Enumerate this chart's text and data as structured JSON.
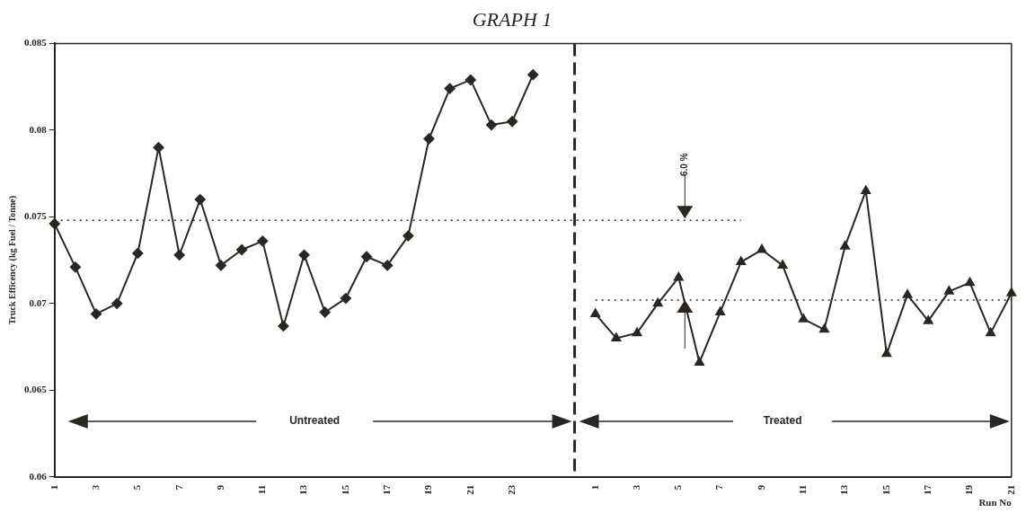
{
  "chart_data": {
    "type": "line",
    "title": "GRAPH 1",
    "xlabel": "Run No",
    "ylabel": "Truck Efficency (kg Fuel / Tonne)",
    "categories": [
      "1",
      null,
      "3",
      null,
      "5",
      null,
      "7",
      null,
      "9",
      null,
      "11",
      null,
      "13",
      null,
      "15",
      null,
      "17",
      null,
      "19",
      null,
      "21",
      null,
      "23",
      null,
      null,
      null,
      "1",
      null,
      "3",
      null,
      "5",
      null,
      "7",
      null,
      "9",
      null,
      "11",
      null,
      "13",
      null,
      "15",
      null,
      "17",
      null,
      "19",
      null,
      "21"
    ],
    "series": [
      {
        "color": "#2b2620",
        "marker": "diamond",
        "values": [
          0.0746,
          0.0721,
          0.0694,
          0.07,
          0.0729,
          0.079,
          0.0728,
          0.076,
          0.0722,
          0.0731,
          0.0736,
          0.0687,
          0.0728,
          0.0695,
          0.0703,
          0.0727,
          0.0722,
          0.0739,
          0.0795,
          0.0824,
          0.0829,
          0.0803,
          0.0805,
          0.0832,
          null,
          null,
          null,
          null,
          null,
          null,
          null,
          null,
          null,
          null,
          null,
          null,
          null,
          null,
          null,
          null,
          null,
          null,
          null,
          null,
          null,
          null,
          null
        ]
      },
      {
        "color": "#2b2620",
        "marker": "triangle",
        "values": [
          null,
          null,
          null,
          null,
          null,
          null,
          null,
          null,
          null,
          null,
          null,
          null,
          null,
          null,
          null,
          null,
          null,
          null,
          null,
          null,
          null,
          null,
          null,
          null,
          null,
          null,
          0.0694,
          0.068,
          0.0683,
          0.07,
          0.0715,
          0.0666,
          0.0695,
          0.0724,
          0.0731,
          0.0722,
          0.0691,
          0.0685,
          0.0733,
          0.0765,
          0.0671,
          0.0705,
          0.069,
          0.0707,
          0.0712,
          0.0683,
          0.0706
        ]
      },
      {
        "color": "#2b2620",
        "marker": "none",
        "line_style": "dotted",
        "values": [
          0.0748,
          0.0748,
          0.0748,
          0.0748,
          0.0748,
          0.0748,
          0.0748,
          0.0748,
          0.0748,
          0.0748,
          0.0748,
          0.0748,
          0.0748,
          0.0748,
          0.0748,
          0.0748,
          0.0748,
          0.0748,
          0.0748,
          0.0748,
          0.0748,
          0.0748,
          0.0748,
          0.0748,
          0.0748,
          0.0748,
          0.0748,
          0.0748,
          0.0748,
          0.0748,
          0.0748,
          0.0748,
          0.0748,
          0.0748,
          null,
          null,
          null,
          null,
          null,
          null,
          null,
          null,
          null,
          null,
          null,
          null,
          null
        ]
      },
      {
        "color": "#2b2620",
        "marker": "none",
        "line_style": "dotted",
        "values": [
          null,
          null,
          null,
          null,
          null,
          null,
          null,
          null,
          null,
          null,
          null,
          null,
          null,
          null,
          null,
          null,
          null,
          null,
          null,
          null,
          null,
          null,
          null,
          null,
          null,
          null,
          0.0702,
          0.0702,
          0.0702,
          0.0702,
          0.0702,
          0.0702,
          0.0702,
          0.0702,
          0.0702,
          0.0702,
          0.0702,
          0.0702,
          0.0702,
          0.0702,
          0.0702,
          0.0702,
          0.0702,
          0.0702,
          0.0702,
          0.0702,
          0.0702
        ]
      }
    ],
    "ylim": [
      0.06,
      0.085
    ],
    "yticks": [
      0.06,
      0.065,
      0.07,
      0.075,
      0.08,
      0.085
    ],
    "grid": false,
    "legend": false,
    "annotations": [
      "Untreated",
      "Treated",
      "6.0 %"
    ]
  }
}
